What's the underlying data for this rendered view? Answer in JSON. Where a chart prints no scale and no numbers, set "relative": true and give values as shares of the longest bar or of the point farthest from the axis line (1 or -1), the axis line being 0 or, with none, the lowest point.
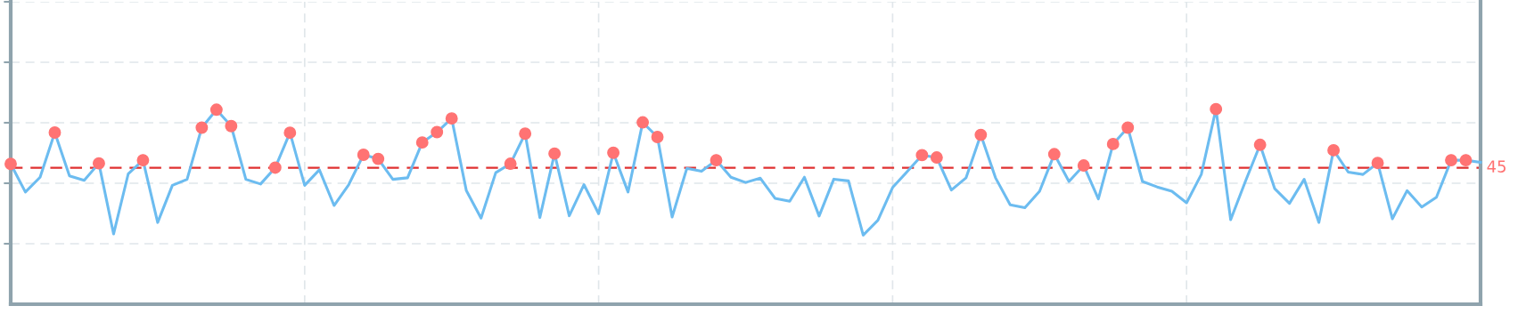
{
  "chart_data": {
    "type": "line",
    "relative": true,
    "grid": true,
    "line_style": "solid",
    "annotations": [
      "45"
    ],
    "categories": [
      null,
      null,
      null,
      null,
      null,
      null,
      null,
      null,
      null,
      null,
      null,
      null,
      null,
      null,
      null,
      null,
      null,
      null,
      null,
      null,
      null,
      null,
      null,
      null,
      null,
      null,
      null,
      null,
      null,
      null,
      null,
      null,
      null,
      null,
      null,
      null,
      null,
      null,
      null,
      null,
      null,
      null,
      null,
      null,
      null,
      null,
      null,
      null,
      null,
      null,
      null,
      null,
      null,
      null,
      null,
      null,
      null,
      null,
      null,
      null,
      null,
      null,
      null,
      null,
      null,
      null,
      null,
      null,
      null,
      null,
      null,
      null,
      null,
      null,
      null,
      null,
      null,
      null,
      null,
      null,
      null,
      null,
      null,
      null,
      null,
      null,
      null,
      null,
      null,
      null,
      null,
      null,
      null,
      null,
      null,
      null,
      null,
      null,
      null,
      null,
      null
    ],
    "series": [
      {
        "color": "#6cbcf0",
        "values": [
          0.719,
          0.575,
          0.651,
          0.88,
          0.658,
          0.635,
          0.722,
          0.36,
          0.669,
          0.738,
          0.419,
          0.609,
          0.64,
          0.905,
          0.997,
          0.913,
          0.64,
          0.616,
          0.7,
          0.879,
          0.609,
          0.689,
          0.506,
          0.613,
          0.766,
          0.745,
          0.64,
          0.648,
          0.829,
          0.882,
          0.952,
          0.582,
          0.441,
          0.674,
          0.72,
          0.874,
          0.444,
          0.772,
          0.453,
          0.613,
          0.464,
          0.776,
          0.575,
          0.932,
          0.857,
          0.447,
          0.696,
          0.682,
          0.738,
          0.651,
          0.624,
          0.646,
          0.543,
          0.528,
          0.651,
          0.452,
          0.641,
          0.632,
          0.354,
          0.43,
          0.598,
          0.68,
          0.764,
          0.752,
          0.585,
          0.648,
          0.868,
          0.648,
          0.509,
          0.495,
          0.579,
          0.769,
          0.629,
          0.711,
          0.54,
          0.821,
          0.905,
          0.629,
          0.601,
          0.579,
          0.52,
          0.665,
          1,
          0.433,
          0.629,
          0.817,
          0.592,
          0.517,
          0.64,
          0.419,
          0.789,
          0.677,
          0.665,
          0.724,
          0.438,
          0.582,
          0.498,
          0.548,
          0.738,
          0.738,
          0.727
        ],
        "colors": [
          "#ff7373",
          null,
          null,
          "#ff7373",
          null,
          null,
          "#ff7373",
          null,
          null,
          "#ff7373",
          null,
          null,
          null,
          "#ff7373",
          "#ff7373",
          "#ff7373",
          null,
          null,
          "#ff7373",
          "#ff7373",
          null,
          null,
          null,
          null,
          "#ff7373",
          "#ff7373",
          null,
          null,
          "#ff7373",
          "#ff7373",
          "#ff7373",
          null,
          null,
          null,
          "#ff7373",
          "#ff7373",
          null,
          "#ff7373",
          null,
          null,
          null,
          "#ff7373",
          null,
          "#ff7373",
          "#ff7373",
          null,
          null,
          null,
          "#ff7373",
          null,
          null,
          null,
          null,
          null,
          null,
          null,
          null,
          null,
          null,
          null,
          null,
          null,
          "#ff7373",
          "#ff7373",
          null,
          null,
          "#ff7373",
          null,
          null,
          null,
          null,
          "#ff7373",
          null,
          "#ff7373",
          null,
          "#ff7373",
          "#ff7373",
          null,
          null,
          null,
          null,
          null,
          "#ff7373",
          null,
          null,
          "#ff7373",
          null,
          null,
          null,
          null,
          "#ff7373",
          null,
          null,
          "#ff7373",
          null,
          null,
          null,
          null,
          "#ff7373",
          "#ff7373",
          null
        ]
      }
    ],
    "ref_lines": [
      {
        "axis": "y",
        "value": 0.699,
        "color": "#e03030",
        "line_style": "dashed"
      }
    ]
  }
}
